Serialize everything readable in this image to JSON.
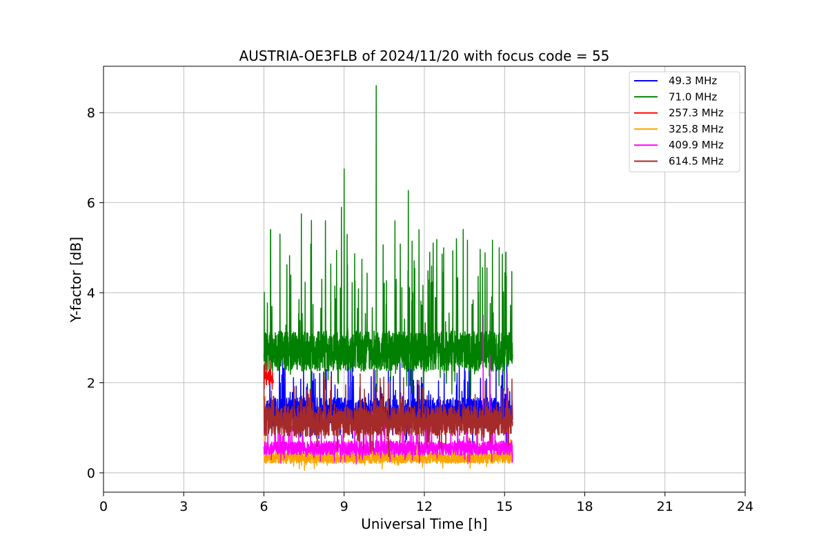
{
  "chart_data": {
    "type": "line",
    "title": "AUSTRIA-OE3FLB of 2024/11/20 with focus code = 55",
    "xlabel": "Universal Time [h]",
    "ylabel": "Y-factor [dB]",
    "xlim": [
      0,
      24
    ],
    "ylim": [
      -0.43,
      9.03
    ],
    "xticks": [
      0,
      3,
      6,
      9,
      12,
      15,
      18,
      21,
      24
    ],
    "xtick_labels": [
      "0",
      "3",
      "6",
      "9",
      "12",
      "15",
      "18",
      "21",
      "24"
    ],
    "yticks": [
      0,
      2,
      4,
      6,
      8
    ],
    "ytick_labels": [
      "0",
      "2",
      "4",
      "6",
      "8"
    ],
    "grid": true,
    "legend_position": "top-right",
    "x_range_of_data": [
      6.0,
      15.3
    ],
    "series": [
      {
        "name": "  49.3 MHz",
        "color": "#0000ff",
        "base": 1.35,
        "noise": 0.32,
        "spike_max": 1.2,
        "peaks": [
          [
            9.3,
            2.95
          ],
          [
            11.5,
            2.3
          ],
          [
            13.2,
            1.95
          ],
          [
            14.1,
            2.1
          ]
        ]
      },
      {
        "name": "  71.0 MHz",
        "color": "#008000",
        "base": 2.7,
        "noise": 0.45,
        "spike_max": 2.6,
        "peaks": [
          [
            6.25,
            5.4
          ],
          [
            6.6,
            5.3
          ],
          [
            7.4,
            5.75
          ],
          [
            8.3,
            5.6
          ],
          [
            8.9,
            5.9
          ],
          [
            9.0,
            6.75
          ],
          [
            10.2,
            8.6
          ],
          [
            10.9,
            5.6
          ],
          [
            11.4,
            6.27
          ],
          [
            11.8,
            5.4
          ],
          [
            12.2,
            4.9
          ],
          [
            13.2,
            5.2
          ],
          [
            14.8,
            5.0
          ],
          [
            15.05,
            4.9
          ]
        ]
      },
      {
        "name": " 257.3 MHz",
        "color": "#ff0000",
        "base": 2.1,
        "noise": 0.15,
        "spike_max": 0.5,
        "peaks": [
          [
            6.1,
            2.55
          ],
          [
            6.25,
            2.5
          ]
        ],
        "x_end": 6.35
      },
      {
        "name": " 325.8 MHz",
        "color": "#ffa500",
        "base": 0.33,
        "noise": 0.12,
        "spike_max": 0.4,
        "peaks": [
          [
            6.05,
            1.7
          ],
          [
            14.0,
            0.9
          ]
        ]
      },
      {
        "name": " 409.9 MHz",
        "color": "#ff00ff",
        "base": 0.55,
        "noise": 0.16,
        "spike_max": 0.7,
        "peaks": [
          [
            14.2,
            3.5
          ],
          [
            14.45,
            2.6
          ],
          [
            15.1,
            2.2
          ]
        ]
      },
      {
        "name": " 614.5 MHz",
        "color": "#a52a2a",
        "base": 1.15,
        "noise": 0.33,
        "spike_max": 0.9,
        "peaks": [
          [
            6.0,
            2.4
          ],
          [
            10.1,
            2.3
          ],
          [
            9.6,
            2.2
          ]
        ]
      }
    ]
  }
}
